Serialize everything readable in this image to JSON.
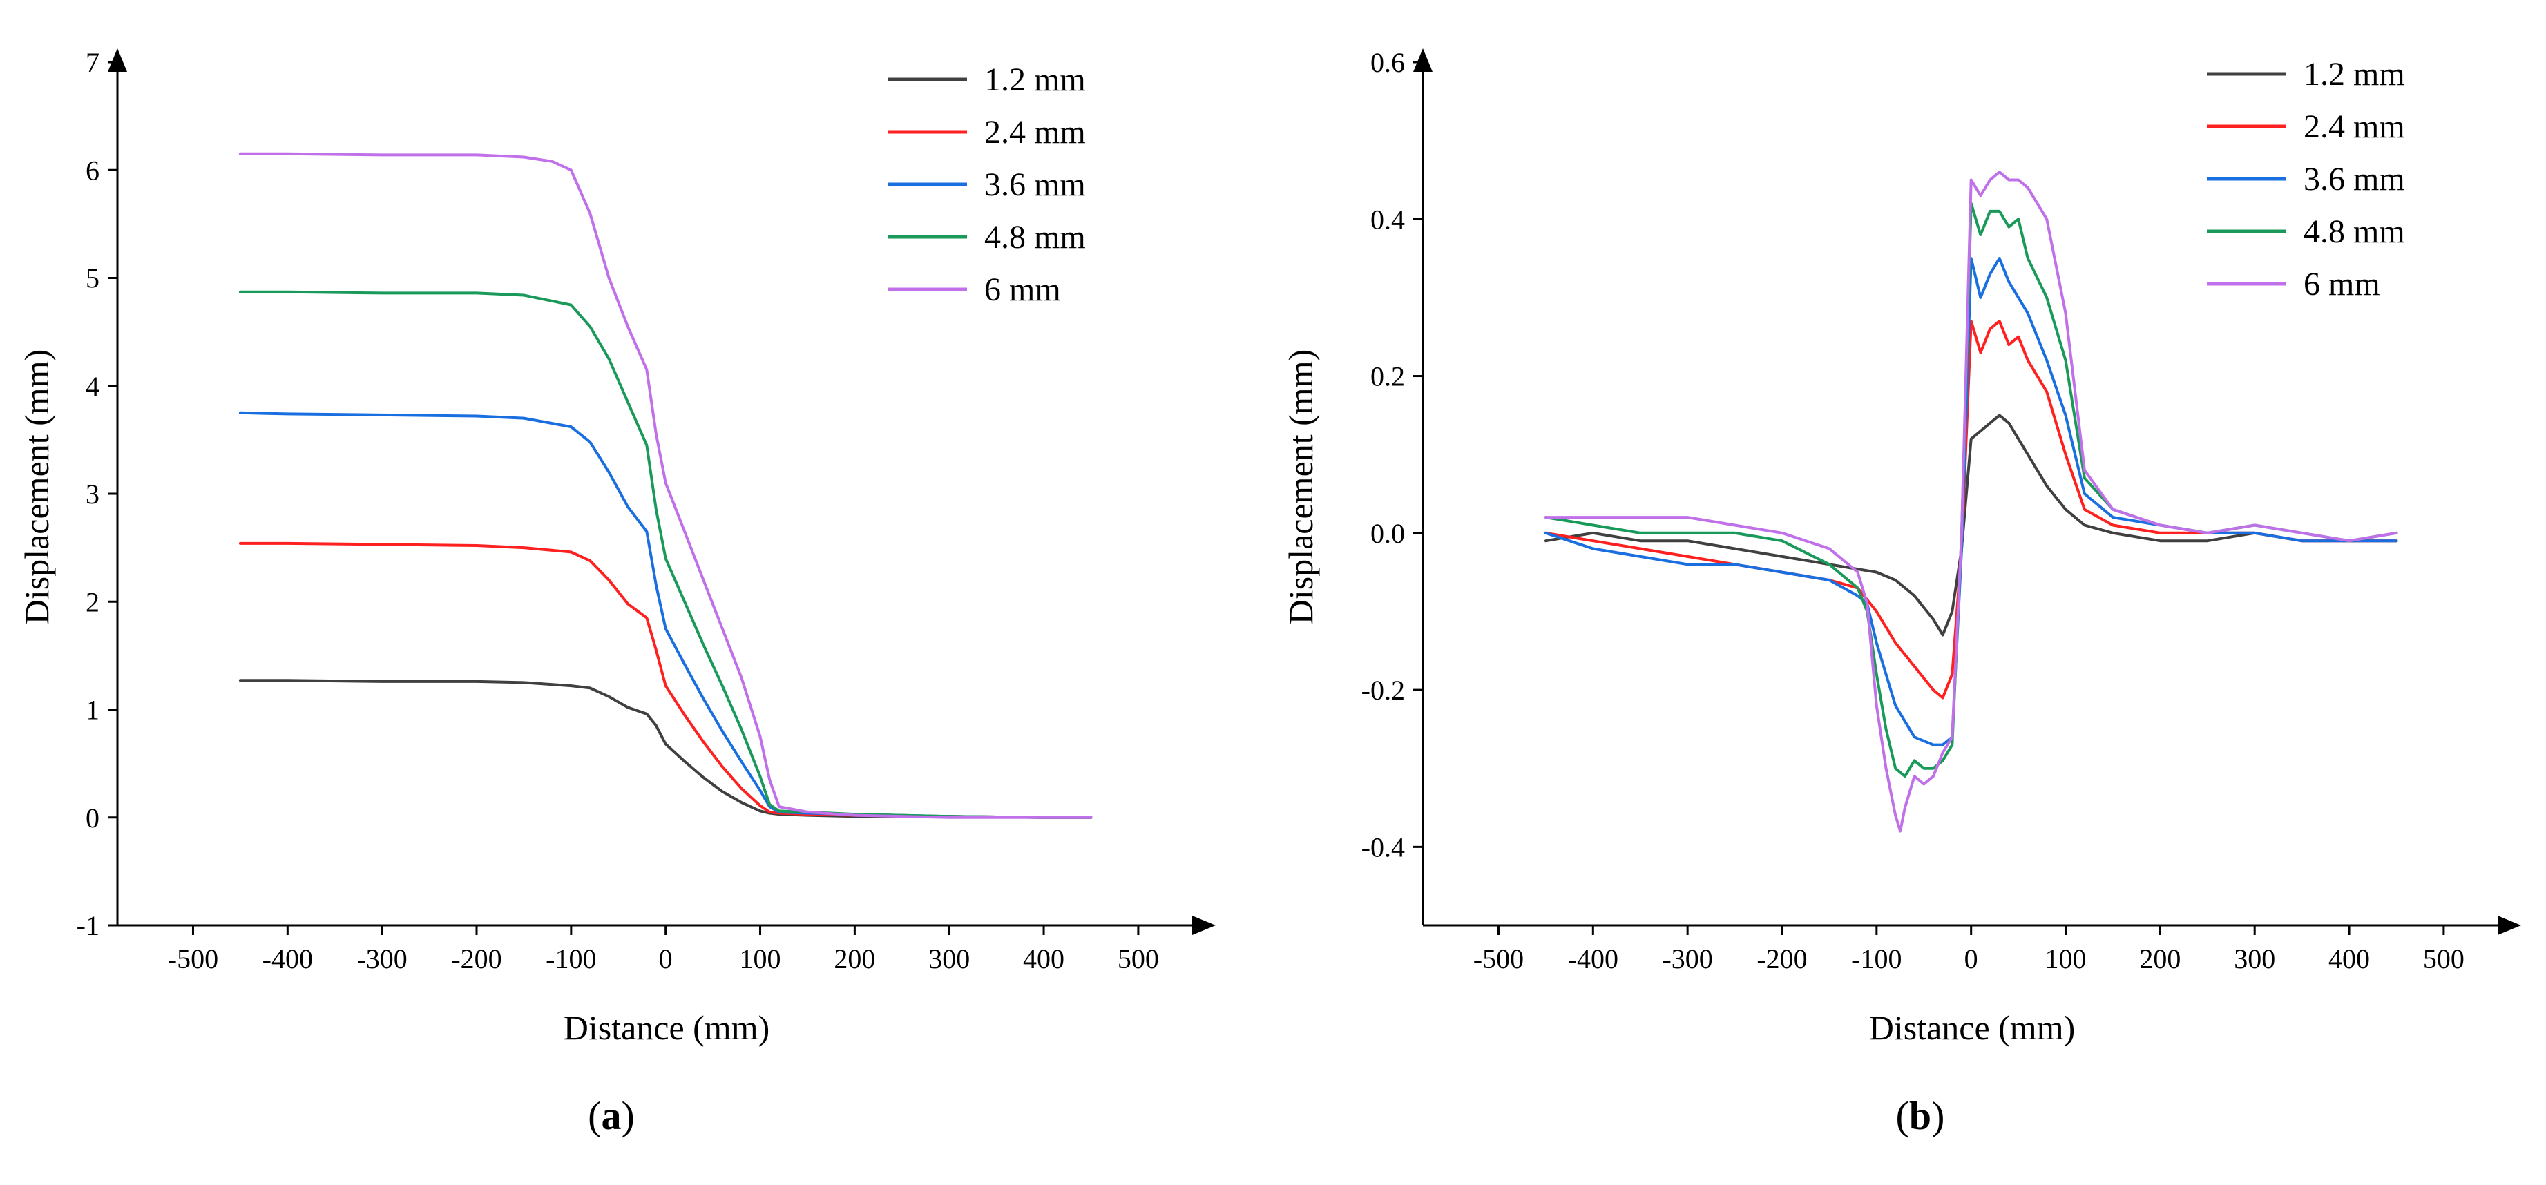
{
  "chart_data": [
    {
      "type": "line",
      "panel_label": "(a)",
      "xlabel": "Distance (mm)",
      "ylabel": "Displacement (mm)",
      "xlim": [
        -580,
        560
      ],
      "ylim": [
        -1,
        7
      ],
      "xticks": [
        -500,
        -400,
        -300,
        -200,
        -100,
        0,
        100,
        200,
        300,
        400,
        500
      ],
      "yticks": [
        -1,
        0,
        1,
        2,
        3,
        4,
        5,
        6,
        7
      ],
      "ytick_labels": [
        "-1",
        "0",
        "1",
        "2",
        "3",
        "4",
        "5",
        "6",
        "7"
      ],
      "legend_position": "top-right",
      "series": [
        {
          "name": "1.2 mm",
          "color": "#404040",
          "x": [
            -450,
            -400,
            -300,
            -200,
            -150,
            -100,
            -80,
            -60,
            -40,
            -20,
            -10,
            0,
            20,
            40,
            60,
            80,
            100,
            110,
            120,
            150,
            200,
            300,
            400,
            450
          ],
          "y": [
            1.27,
            1.27,
            1.26,
            1.26,
            1.25,
            1.22,
            1.2,
            1.12,
            1.02,
            0.96,
            0.85,
            0.68,
            0.52,
            0.37,
            0.24,
            0.14,
            0.06,
            0.04,
            0.03,
            0.02,
            0.01,
            0.01,
            0.0,
            0.0
          ]
        },
        {
          "name": "2.4 mm",
          "color": "#ff2020",
          "x": [
            -450,
            -400,
            -300,
            -200,
            -150,
            -100,
            -80,
            -60,
            -40,
            -20,
            -10,
            0,
            20,
            40,
            60,
            80,
            100,
            110,
            120,
            150,
            200,
            300,
            400,
            450
          ],
          "y": [
            2.54,
            2.54,
            2.53,
            2.52,
            2.5,
            2.46,
            2.38,
            2.2,
            1.98,
            1.85,
            1.55,
            1.22,
            0.95,
            0.7,
            0.47,
            0.27,
            0.11,
            0.05,
            0.04,
            0.03,
            0.02,
            0.01,
            0.0,
            0.0
          ]
        },
        {
          "name": "3.6 mm",
          "color": "#1a6fe0",
          "x": [
            -450,
            -400,
            -300,
            -200,
            -150,
            -100,
            -80,
            -60,
            -40,
            -20,
            -10,
            0,
            20,
            40,
            60,
            80,
            100,
            110,
            120,
            150,
            200,
            300,
            400,
            450
          ],
          "y": [
            3.75,
            3.74,
            3.73,
            3.72,
            3.7,
            3.62,
            3.48,
            3.2,
            2.88,
            2.65,
            2.15,
            1.75,
            1.42,
            1.1,
            0.8,
            0.52,
            0.25,
            0.1,
            0.05,
            0.04,
            0.03,
            0.01,
            0.0,
            0.0
          ]
        },
        {
          "name": "4.8 mm",
          "color": "#1a9a5a",
          "x": [
            -450,
            -400,
            -300,
            -200,
            -150,
            -100,
            -80,
            -60,
            -40,
            -20,
            -10,
            0,
            20,
            40,
            60,
            80,
            100,
            110,
            120,
            150,
            200,
            300,
            400,
            450
          ],
          "y": [
            4.87,
            4.87,
            4.86,
            4.86,
            4.84,
            4.75,
            4.55,
            4.25,
            3.85,
            3.45,
            2.85,
            2.4,
            2.0,
            1.6,
            1.22,
            0.82,
            0.38,
            0.12,
            0.06,
            0.05,
            0.03,
            0.01,
            0.0,
            0.0
          ]
        },
        {
          "name": "6 mm",
          "color": "#c070e8",
          "x": [
            -450,
            -400,
            -300,
            -200,
            -150,
            -120,
            -100,
            -80,
            -60,
            -40,
            -20,
            -10,
            0,
            20,
            40,
            60,
            80,
            100,
            110,
            120,
            150,
            200,
            300,
            400,
            450
          ],
          "y": [
            6.15,
            6.15,
            6.14,
            6.14,
            6.12,
            6.08,
            6.0,
            5.6,
            5.0,
            4.55,
            4.15,
            3.55,
            3.1,
            2.65,
            2.2,
            1.75,
            1.3,
            0.75,
            0.35,
            0.1,
            0.05,
            0.02,
            0.0,
            0.0,
            0.0
          ]
        }
      ]
    },
    {
      "type": "line",
      "panel_label": "(b)",
      "xlabel": "Distance (mm)",
      "ylabel": "Displacement (mm)",
      "xlim": [
        -580,
        560
      ],
      "ylim": [
        -0.5,
        0.6
      ],
      "xticks": [
        -500,
        -400,
        -300,
        -200,
        -100,
        0,
        100,
        200,
        300,
        400,
        500
      ],
      "yticks": [
        -0.4,
        -0.2,
        0.0,
        0.2,
        0.4,
        0.6
      ],
      "ytick_labels": [
        "-0.4",
        "-0.2",
        "0.0",
        "0.2",
        "0.4",
        "0.6"
      ],
      "legend_position": "top-right",
      "series": [
        {
          "name": "1.2 mm",
          "color": "#404040",
          "x": [
            -450,
            -400,
            -350,
            -300,
            -250,
            -200,
            -150,
            -100,
            -80,
            -60,
            -40,
            -30,
            -20,
            -10,
            0,
            10,
            20,
            30,
            40,
            50,
            60,
            80,
            100,
            120,
            150,
            200,
            250,
            300,
            350,
            400,
            450
          ],
          "y": [
            -0.01,
            0.0,
            -0.01,
            -0.01,
            -0.02,
            -0.03,
            -0.04,
            -0.05,
            -0.06,
            -0.08,
            -0.11,
            -0.13,
            -0.1,
            -0.02,
            0.12,
            0.13,
            0.14,
            0.15,
            0.14,
            0.12,
            0.1,
            0.06,
            0.03,
            0.01,
            0.0,
            -0.01,
            -0.01,
            0.0,
            -0.01,
            -0.01,
            -0.01
          ]
        },
        {
          "name": "2.4 mm",
          "color": "#ff2020",
          "x": [
            -450,
            -400,
            -350,
            -300,
            -250,
            -200,
            -150,
            -120,
            -100,
            -80,
            -60,
            -40,
            -30,
            -20,
            -10,
            0,
            10,
            20,
            30,
            40,
            50,
            60,
            80,
            100,
            120,
            150,
            200,
            250,
            300,
            350,
            400,
            450
          ],
          "y": [
            0.0,
            -0.01,
            -0.02,
            -0.03,
            -0.04,
            -0.05,
            -0.06,
            -0.07,
            -0.1,
            -0.14,
            -0.17,
            -0.2,
            -0.21,
            -0.18,
            -0.02,
            0.27,
            0.23,
            0.26,
            0.27,
            0.24,
            0.25,
            0.22,
            0.18,
            0.1,
            0.03,
            0.01,
            0.0,
            0.0,
            0.0,
            -0.01,
            -0.01,
            -0.01
          ]
        },
        {
          "name": "3.6 mm",
          "color": "#1a6fe0",
          "x": [
            -450,
            -400,
            -350,
            -300,
            -250,
            -200,
            -150,
            -120,
            -110,
            -100,
            -80,
            -60,
            -40,
            -30,
            -20,
            -10,
            0,
            10,
            20,
            30,
            40,
            50,
            60,
            80,
            100,
            120,
            150,
            200,
            250,
            300,
            350,
            400,
            450
          ],
          "y": [
            0.0,
            -0.02,
            -0.03,
            -0.04,
            -0.04,
            -0.05,
            -0.06,
            -0.08,
            -0.09,
            -0.14,
            -0.22,
            -0.26,
            -0.27,
            -0.27,
            -0.26,
            -0.02,
            0.35,
            0.3,
            0.33,
            0.35,
            0.32,
            0.3,
            0.28,
            0.22,
            0.15,
            0.05,
            0.02,
            0.01,
            0.0,
            0.0,
            -0.01,
            -0.01,
            -0.01
          ]
        },
        {
          "name": "4.8 mm",
          "color": "#1a9a5a",
          "x": [
            -450,
            -400,
            -350,
            -300,
            -250,
            -200,
            -150,
            -120,
            -110,
            -100,
            -90,
            -80,
            -70,
            -60,
            -50,
            -40,
            -30,
            -20,
            -10,
            0,
            10,
            20,
            30,
            40,
            50,
            60,
            80,
            100,
            120,
            150,
            200,
            250,
            300,
            350,
            400,
            450
          ],
          "y": [
            0.02,
            0.01,
            0.0,
            0.0,
            0.0,
            -0.01,
            -0.04,
            -0.07,
            -0.1,
            -0.18,
            -0.25,
            -0.3,
            -0.31,
            -0.29,
            -0.3,
            -0.3,
            -0.29,
            -0.27,
            0.0,
            0.42,
            0.38,
            0.41,
            0.41,
            0.39,
            0.4,
            0.35,
            0.3,
            0.22,
            0.07,
            0.03,
            0.01,
            0.0,
            0.01,
            0.0,
            -0.01,
            0.0
          ]
        },
        {
          "name": "6 mm",
          "color": "#c070e8",
          "x": [
            -450,
            -400,
            -350,
            -300,
            -250,
            -200,
            -150,
            -120,
            -110,
            -100,
            -90,
            -80,
            -75,
            -70,
            -60,
            -50,
            -40,
            -30,
            -20,
            -10,
            0,
            10,
            20,
            30,
            40,
            50,
            60,
            80,
            100,
            120,
            150,
            200,
            250,
            300,
            350,
            400,
            450
          ],
          "y": [
            0.02,
            0.02,
            0.02,
            0.02,
            0.01,
            0.0,
            -0.02,
            -0.05,
            -0.09,
            -0.22,
            -0.3,
            -0.36,
            -0.38,
            -0.35,
            -0.31,
            -0.32,
            -0.31,
            -0.28,
            -0.26,
            0.0,
            0.45,
            0.43,
            0.45,
            0.46,
            0.45,
            0.45,
            0.44,
            0.4,
            0.28,
            0.08,
            0.03,
            0.01,
            0.0,
            0.01,
            0.0,
            -0.01,
            0.0
          ]
        }
      ]
    }
  ]
}
